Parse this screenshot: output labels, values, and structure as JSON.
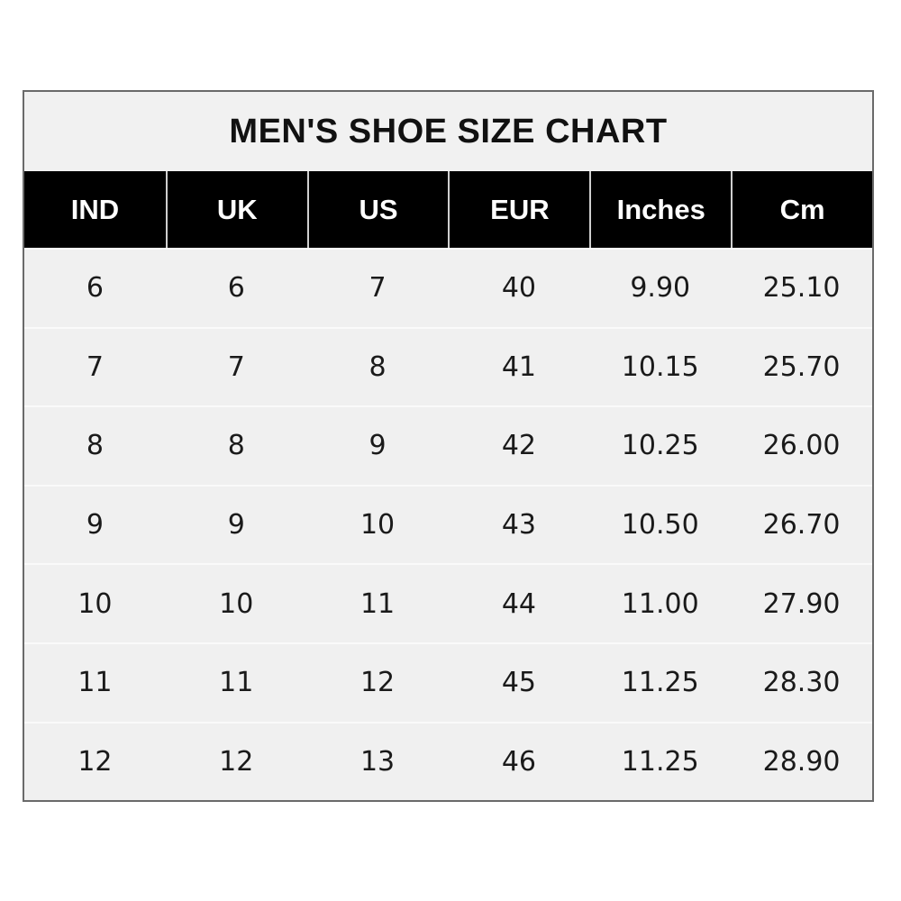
{
  "title": "MEN'S SHOE SIZE CHART",
  "chart_data": {
    "type": "table",
    "title": "MEN'S SHOE SIZE CHART",
    "columns": [
      "IND",
      "UK",
      "US",
      "EUR",
      "Inches",
      "Cm"
    ],
    "rows": [
      [
        "6",
        "6",
        "7",
        "40",
        "9.90",
        "25.10"
      ],
      [
        "7",
        "7",
        "8",
        "41",
        "10.15",
        "25.70"
      ],
      [
        "8",
        "8",
        "9",
        "42",
        "10.25",
        "26.00"
      ],
      [
        "9",
        "9",
        "10",
        "43",
        "10.50",
        "26.70"
      ],
      [
        "10",
        "10",
        "11",
        "44",
        "11.00",
        "27.90"
      ],
      [
        "11",
        "11",
        "12",
        "45",
        "11.25",
        "28.30"
      ],
      [
        "12",
        "12",
        "13",
        "46",
        "11.25",
        "28.90"
      ]
    ]
  },
  "colors": {
    "header_bg": "#000000",
    "header_text": "#ffffff",
    "body_bg": "#f0f0f0",
    "border": "#6a6a6a"
  }
}
